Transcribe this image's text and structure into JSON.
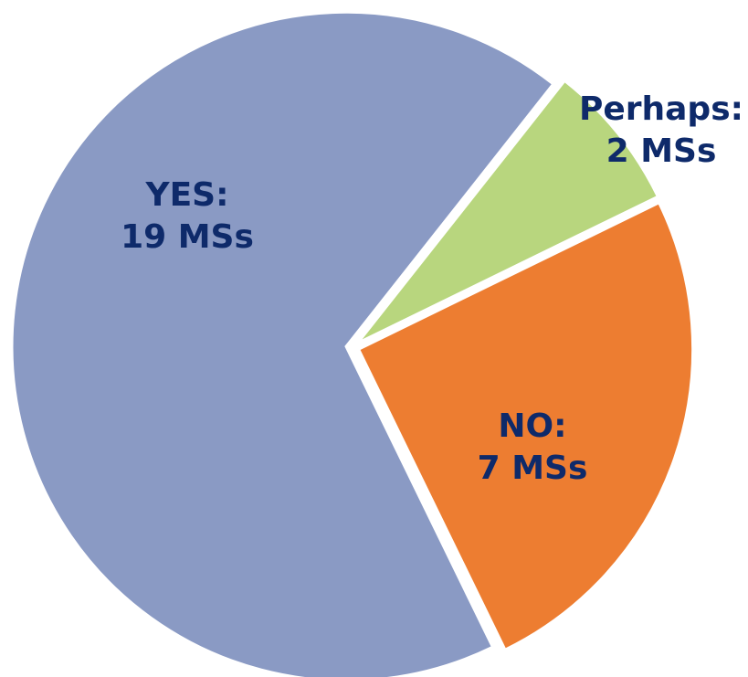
{
  "chart_data": {
    "type": "pie",
    "categories": [
      "YES:",
      "Perhaps:",
      "NO:"
    ],
    "values": [
      19,
      2,
      7
    ],
    "value_labels": [
      "19 MSs",
      "2 MSs",
      "7 MSs"
    ],
    "colors": [
      "#8a9ac4",
      "#b8d67e",
      "#ed7d31"
    ]
  }
}
